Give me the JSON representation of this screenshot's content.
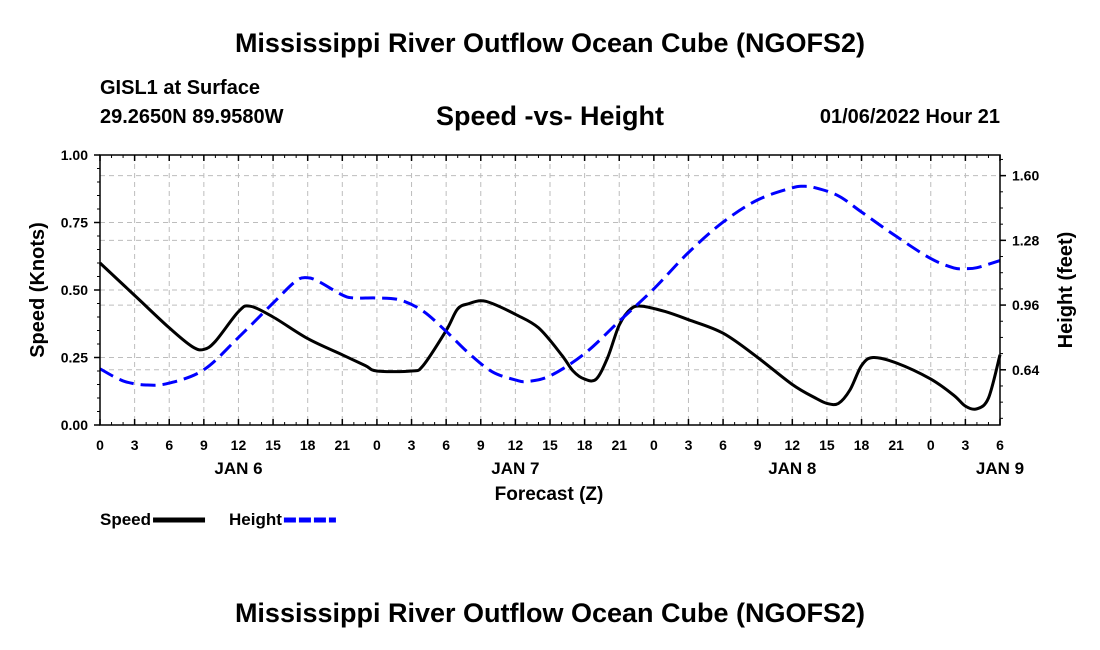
{
  "header": {
    "title": "Mississippi River Outflow Ocean Cube (NGOFS2)",
    "station": "GISL1 at Surface",
    "coordinates": "29.2650N  89.9580W",
    "subtitle": "Speed -vs- Height",
    "datetime": "01/06/2022 Hour 21"
  },
  "footer": {
    "title": "Mississippi River Outflow Ocean Cube (NGOFS2)"
  },
  "chart_data": {
    "type": "line",
    "xlabel": "Forecast (Z)",
    "ylabel_left": "Speed (Knots)",
    "ylabel_right": "Height (feet)",
    "x_range_hours": [
      0,
      78
    ],
    "x_tick_step_hours": 3,
    "x_tick_labels": [
      "0",
      "3",
      "6",
      "9",
      "12",
      "15",
      "18",
      "21",
      "0",
      "3",
      "6",
      "9",
      "12",
      "15",
      "18",
      "21",
      "0",
      "3",
      "6",
      "9",
      "12",
      "15",
      "18",
      "21",
      "0",
      "3",
      "6"
    ],
    "day_labels": [
      {
        "label": "JAN 6",
        "hour": 12
      },
      {
        "label": "JAN 7",
        "hour": 36
      },
      {
        "label": "JAN 8",
        "hour": 60
      },
      {
        "label": "JAN 9",
        "hour": 78
      }
    ],
    "y_left": {
      "range": [
        0,
        1.0
      ],
      "ticks": [
        "0.00",
        "0.25",
        "0.50",
        "0.75",
        "1.00"
      ]
    },
    "y_right": {
      "range": [
        0.367,
        1.702
      ],
      "ticks": [
        "0.64",
        "0.96",
        "1.28",
        "1.60"
      ]
    },
    "grid": true,
    "series": [
      {
        "name": "Speed",
        "axis": "left",
        "color": "#000000",
        "style": "solid",
        "points": [
          [
            0,
            0.6
          ],
          [
            3,
            0.48
          ],
          [
            6,
            0.36
          ],
          [
            8,
            0.29
          ],
          [
            9,
            0.28
          ],
          [
            10,
            0.31
          ],
          [
            12,
            0.42
          ],
          [
            13,
            0.44
          ],
          [
            15,
            0.4
          ],
          [
            18,
            0.32
          ],
          [
            21,
            0.26
          ],
          [
            23,
            0.22
          ],
          [
            24,
            0.2
          ],
          [
            27,
            0.2
          ],
          [
            28,
            0.22
          ],
          [
            30,
            0.35
          ],
          [
            31,
            0.43
          ],
          [
            32,
            0.45
          ],
          [
            33,
            0.46
          ],
          [
            34,
            0.45
          ],
          [
            36,
            0.41
          ],
          [
            38,
            0.36
          ],
          [
            40,
            0.26
          ],
          [
            41,
            0.2
          ],
          [
            42,
            0.17
          ],
          [
            43,
            0.17
          ],
          [
            44,
            0.25
          ],
          [
            45,
            0.37
          ],
          [
            46,
            0.43
          ],
          [
            47,
            0.44
          ],
          [
            49,
            0.42
          ],
          [
            51,
            0.39
          ],
          [
            54,
            0.34
          ],
          [
            57,
            0.25
          ],
          [
            60,
            0.15
          ],
          [
            62,
            0.1
          ],
          [
            63,
            0.08
          ],
          [
            64,
            0.08
          ],
          [
            65,
            0.13
          ],
          [
            66,
            0.22
          ],
          [
            67,
            0.25
          ],
          [
            69,
            0.23
          ],
          [
            72,
            0.17
          ],
          [
            74,
            0.11
          ],
          [
            75,
            0.07
          ],
          [
            76,
            0.06
          ],
          [
            77,
            0.1
          ],
          [
            78,
            0.26
          ]
        ]
      },
      {
        "name": "Height",
        "axis": "right",
        "color": "#0000ff",
        "style": "dashed",
        "points": [
          [
            0,
            0.645
          ],
          [
            2,
            0.585
          ],
          [
            4,
            0.565
          ],
          [
            6,
            0.574
          ],
          [
            9,
            0.64
          ],
          [
            12,
            0.8
          ],
          [
            15,
            0.97
          ],
          [
            17,
            1.08
          ],
          [
            18,
            1.095
          ],
          [
            19,
            1.075
          ],
          [
            21,
            1.01
          ],
          [
            22,
            0.995
          ],
          [
            24,
            0.995
          ],
          [
            26,
            0.985
          ],
          [
            28,
            0.93
          ],
          [
            30,
            0.83
          ],
          [
            32,
            0.72
          ],
          [
            34,
            0.63
          ],
          [
            36,
            0.59
          ],
          [
            37,
            0.582
          ],
          [
            39,
            0.61
          ],
          [
            42,
            0.72
          ],
          [
            45,
            0.88
          ],
          [
            48,
            1.04
          ],
          [
            51,
            1.22
          ],
          [
            54,
            1.37
          ],
          [
            57,
            1.48
          ],
          [
            60,
            1.54
          ],
          [
            61,
            1.547
          ],
          [
            62,
            1.54
          ],
          [
            64,
            1.5
          ],
          [
            66,
            1.42
          ],
          [
            69,
            1.3
          ],
          [
            72,
            1.19
          ],
          [
            74,
            1.144
          ],
          [
            75,
            1.14
          ],
          [
            76,
            1.145
          ],
          [
            78,
            1.18
          ]
        ]
      }
    ],
    "legend": {
      "placement": "bottom-left",
      "entries": [
        "Speed",
        "Height"
      ]
    }
  }
}
